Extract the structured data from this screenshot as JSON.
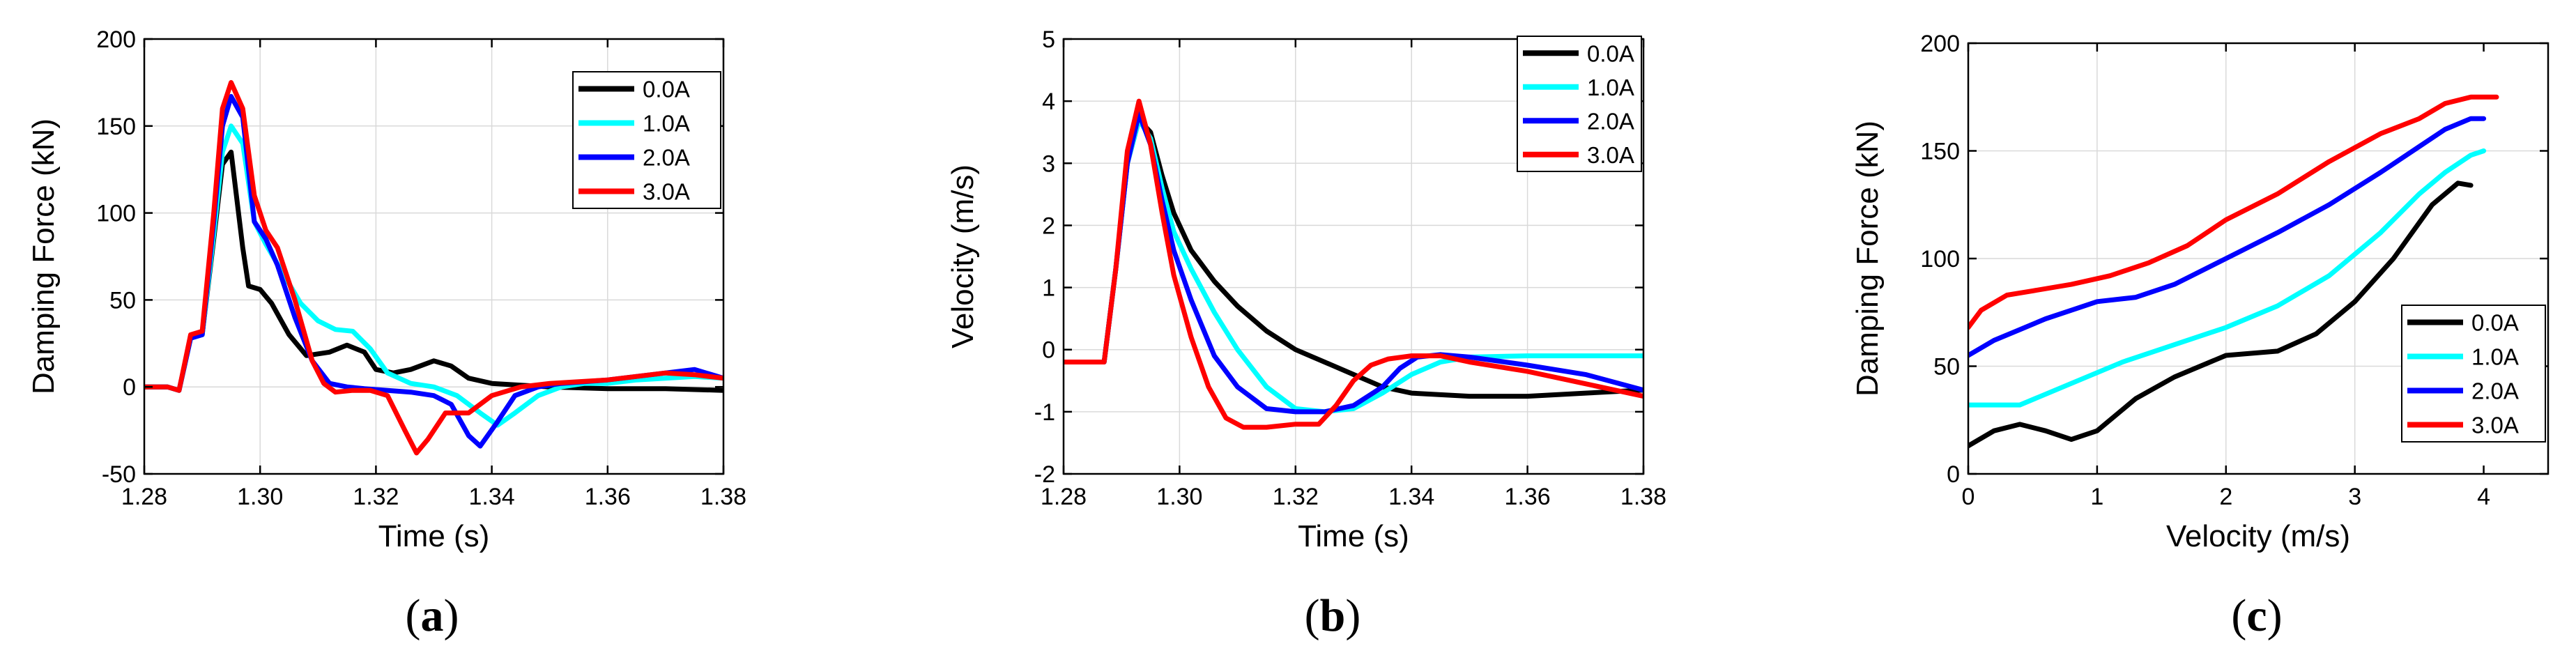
{
  "chart_data": [
    {
      "id": "a",
      "type": "line",
      "panel_label": "a",
      "xlabel": "Time (s)",
      "ylabel": "Damping Force (kN)",
      "xlim": [
        1.28,
        1.38
      ],
      "ylim": [
        -50,
        200
      ],
      "xticks": [
        1.28,
        1.3,
        1.32,
        1.34,
        1.36,
        1.38
      ],
      "xtick_labels": [
        "1.28",
        "1.30",
        "1.32",
        "1.34",
        "1.36",
        "1.38"
      ],
      "yticks": [
        -50,
        0,
        50,
        100,
        150,
        200
      ],
      "ytick_labels": [
        "-50",
        "0",
        "50",
        "100",
        "150",
        "200"
      ],
      "grid": true,
      "legend_position": "top-right",
      "series": [
        {
          "name": "0.0A",
          "color": "#000000",
          "x": [
            1.28,
            1.284,
            1.286,
            1.288,
            1.29,
            1.292,
            1.2935,
            1.295,
            1.297,
            1.298,
            1.3,
            1.302,
            1.305,
            1.308,
            1.312,
            1.315,
            1.318,
            1.32,
            1.323,
            1.326,
            1.33,
            1.333,
            1.336,
            1.34,
            1.345,
            1.35,
            1.36,
            1.37,
            1.38
          ],
          "y": [
            0,
            0,
            -2,
            28,
            30,
            85,
            128,
            135,
            80,
            58,
            56,
            48,
            30,
            18,
            20,
            24,
            20,
            10,
            8,
            10,
            15,
            12,
            5,
            2,
            1,
            0,
            -1,
            -1,
            -2
          ]
        },
        {
          "name": "1.0A",
          "color": "#00ffff",
          "x": [
            1.28,
            1.284,
            1.286,
            1.288,
            1.29,
            1.292,
            1.2935,
            1.295,
            1.297,
            1.299,
            1.301,
            1.304,
            1.307,
            1.31,
            1.313,
            1.316,
            1.319,
            1.322,
            1.326,
            1.33,
            1.334,
            1.338,
            1.341,
            1.344,
            1.348,
            1.352,
            1.356,
            1.36,
            1.365,
            1.37,
            1.375,
            1.38
          ],
          "y": [
            0,
            0,
            -2,
            28,
            30,
            88,
            135,
            150,
            140,
            95,
            82,
            65,
            48,
            38,
            33,
            32,
            22,
            8,
            2,
            0,
            -5,
            -15,
            -22,
            -15,
            -5,
            0,
            2,
            2,
            4,
            5,
            6,
            5
          ]
        },
        {
          "name": "2.0A",
          "color": "#0000ff",
          "x": [
            1.28,
            1.284,
            1.286,
            1.288,
            1.29,
            1.292,
            1.2935,
            1.295,
            1.297,
            1.299,
            1.301,
            1.303,
            1.306,
            1.309,
            1.312,
            1.315,
            1.318,
            1.322,
            1.326,
            1.33,
            1.333,
            1.336,
            1.338,
            1.341,
            1.344,
            1.348,
            1.352,
            1.356,
            1.36,
            1.365,
            1.37,
            1.375,
            1.38
          ],
          "y": [
            0,
            0,
            -2,
            28,
            30,
            95,
            150,
            167,
            155,
            95,
            85,
            70,
            40,
            15,
            2,
            0,
            -1,
            -2,
            -3,
            -5,
            -10,
            -28,
            -34,
            -20,
            -5,
            0,
            2,
            3,
            4,
            6,
            8,
            10,
            5
          ]
        },
        {
          "name": "3.0A",
          "color": "#ff0000",
          "x": [
            1.28,
            1.284,
            1.286,
            1.288,
            1.29,
            1.292,
            1.2935,
            1.295,
            1.297,
            1.299,
            1.301,
            1.303,
            1.306,
            1.309,
            1.311,
            1.313,
            1.316,
            1.319,
            1.322,
            1.325,
            1.327,
            1.329,
            1.332,
            1.336,
            1.34,
            1.345,
            1.35,
            1.355,
            1.36,
            1.365,
            1.37,
            1.375,
            1.38
          ],
          "y": [
            0,
            0,
            -2,
            30,
            32,
            100,
            160,
            175,
            160,
            110,
            90,
            80,
            50,
            15,
            2,
            -3,
            -2,
            -2,
            -5,
            -25,
            -38,
            -30,
            -15,
            -15,
            -5,
            0,
            2,
            3,
            4,
            6,
            8,
            7,
            5
          ]
        }
      ]
    },
    {
      "id": "b",
      "type": "line",
      "panel_label": "b",
      "xlabel": "Time (s)",
      "ylabel": "Velocity (m/s)",
      "xlim": [
        1.28,
        1.38
      ],
      "ylim": [
        -2,
        5
      ],
      "xticks": [
        1.28,
        1.3,
        1.32,
        1.34,
        1.36,
        1.38
      ],
      "xtick_labels": [
        "1.28",
        "1.30",
        "1.32",
        "1.34",
        "1.36",
        "1.38"
      ],
      "yticks": [
        -2,
        -1,
        0,
        1,
        2,
        3,
        4,
        5
      ],
      "ytick_labels": [
        "-2",
        "-1",
        "0",
        "1",
        "2",
        "3",
        "4",
        "5"
      ],
      "grid": true,
      "legend_position": "top-right",
      "series": [
        {
          "name": "0.0A",
          "color": "#000000",
          "x": [
            1.28,
            1.287,
            1.289,
            1.291,
            1.293,
            1.295,
            1.297,
            1.299,
            1.302,
            1.306,
            1.31,
            1.315,
            1.32,
            1.325,
            1.33,
            1.335,
            1.34,
            1.35,
            1.36,
            1.37,
            1.38
          ],
          "y": [
            -0.2,
            -0.2,
            1.3,
            3.0,
            3.7,
            3.5,
            2.8,
            2.2,
            1.6,
            1.1,
            0.7,
            0.3,
            0.0,
            -0.2,
            -0.4,
            -0.6,
            -0.7,
            -0.75,
            -0.75,
            -0.7,
            -0.65
          ]
        },
        {
          "name": "1.0A",
          "color": "#00ffff",
          "x": [
            1.28,
            1.287,
            1.289,
            1.291,
            1.293,
            1.295,
            1.297,
            1.299,
            1.302,
            1.306,
            1.31,
            1.315,
            1.32,
            1.325,
            1.33,
            1.335,
            1.34,
            1.345,
            1.35,
            1.36,
            1.37,
            1.38
          ],
          "y": [
            -0.2,
            -0.2,
            1.3,
            3.0,
            3.7,
            3.4,
            2.6,
            1.9,
            1.3,
            0.6,
            0.0,
            -0.6,
            -0.95,
            -1.0,
            -0.95,
            -0.7,
            -0.4,
            -0.2,
            -0.12,
            -0.1,
            -0.1,
            -0.1
          ]
        },
        {
          "name": "2.0A",
          "color": "#0000ff",
          "x": [
            1.28,
            1.287,
            1.289,
            1.291,
            1.293,
            1.295,
            1.297,
            1.299,
            1.302,
            1.306,
            1.31,
            1.315,
            1.32,
            1.325,
            1.33,
            1.335,
            1.338,
            1.341,
            1.345,
            1.35,
            1.36,
            1.37,
            1.38
          ],
          "y": [
            -0.2,
            -0.2,
            1.3,
            3.0,
            3.8,
            3.3,
            2.4,
            1.6,
            0.8,
            -0.1,
            -0.6,
            -0.95,
            -1.0,
            -1.0,
            -0.9,
            -0.6,
            -0.3,
            -0.12,
            -0.08,
            -0.12,
            -0.25,
            -0.4,
            -0.65
          ]
        },
        {
          "name": "3.0A",
          "color": "#ff0000",
          "x": [
            1.28,
            1.287,
            1.289,
            1.291,
            1.293,
            1.295,
            1.297,
            1.299,
            1.302,
            1.305,
            1.308,
            1.311,
            1.315,
            1.32,
            1.324,
            1.327,
            1.33,
            1.333,
            1.336,
            1.34,
            1.345,
            1.35,
            1.36,
            1.37,
            1.38
          ],
          "y": [
            -0.2,
            -0.2,
            1.3,
            3.2,
            4.0,
            3.3,
            2.2,
            1.2,
            0.2,
            -0.6,
            -1.1,
            -1.25,
            -1.25,
            -1.2,
            -1.2,
            -0.9,
            -0.5,
            -0.25,
            -0.15,
            -0.1,
            -0.1,
            -0.2,
            -0.35,
            -0.55,
            -0.75
          ]
        }
      ]
    },
    {
      "id": "c",
      "type": "line",
      "panel_label": "c",
      "xlabel": "Velocity (m/s)",
      "ylabel": "Damping Force (kN)",
      "xlim": [
        0,
        4.5
      ],
      "ylim": [
        0,
        200
      ],
      "xticks": [
        0,
        1,
        2,
        3,
        4
      ],
      "xtick_labels": [
        "0",
        "1",
        "2",
        "3",
        "4"
      ],
      "yticks": [
        0,
        50,
        100,
        150,
        200
      ],
      "ytick_labels": [
        "0",
        "50",
        "100",
        "150",
        "200"
      ],
      "grid": true,
      "legend_position": "bottom-right",
      "series": [
        {
          "name": "0.0A",
          "color": "#000000",
          "x": [
            0.0,
            0.2,
            0.4,
            0.6,
            0.8,
            1.0,
            1.3,
            1.6,
            2.0,
            2.4,
            2.7,
            3.0,
            3.3,
            3.6,
            3.8,
            3.9
          ],
          "y": [
            13,
            20,
            23,
            20,
            16,
            20,
            35,
            45,
            55,
            57,
            65,
            80,
            100,
            125,
            135,
            134
          ]
        },
        {
          "name": "1.0A",
          "color": "#00ffff",
          "x": [
            0.0,
            0.4,
            0.8,
            1.2,
            1.6,
            2.0,
            2.4,
            2.8,
            3.2,
            3.5,
            3.7,
            3.9,
            4.0
          ],
          "y": [
            32,
            32,
            42,
            52,
            60,
            68,
            78,
            92,
            112,
            130,
            140,
            148,
            150
          ]
        },
        {
          "name": "2.0A",
          "color": "#0000ff",
          "x": [
            0.0,
            0.2,
            0.4,
            0.6,
            0.8,
            1.0,
            1.3,
            1.6,
            2.0,
            2.4,
            2.8,
            3.2,
            3.5,
            3.7,
            3.9,
            4.0
          ],
          "y": [
            55,
            62,
            67,
            72,
            76,
            80,
            82,
            88,
            100,
            112,
            125,
            140,
            152,
            160,
            165,
            165
          ]
        },
        {
          "name": "3.0A",
          "color": "#ff0000",
          "x": [
            0.0,
            0.1,
            0.3,
            0.5,
            0.8,
            1.1,
            1.4,
            1.7,
            2.0,
            2.4,
            2.8,
            3.2,
            3.5,
            3.7,
            3.9,
            4.1
          ],
          "y": [
            68,
            76,
            83,
            85,
            88,
            92,
            98,
            106,
            118,
            130,
            145,
            158,
            165,
            172,
            175,
            175
          ]
        }
      ]
    }
  ]
}
